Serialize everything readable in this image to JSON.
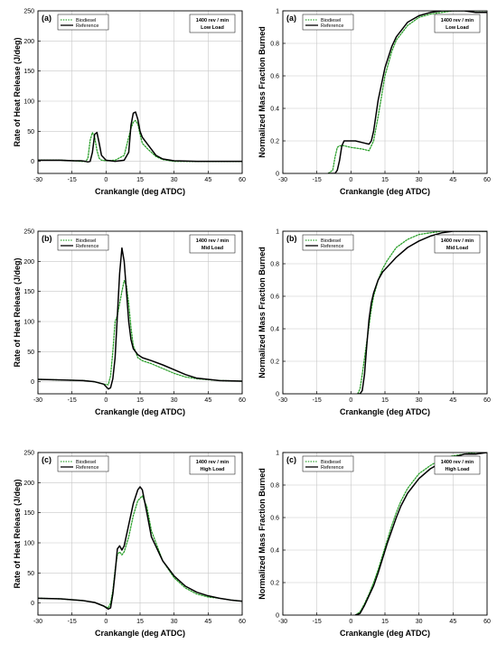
{
  "chart_data": [
    {
      "type": "line",
      "panel_tag": "(a)",
      "ylabel": "Rate of Heat Release (J/deg)",
      "xlabel": "Crankangle (deg ATDC)",
      "xlim": [
        -30,
        60
      ],
      "ylim": [
        -20,
        250
      ],
      "xticks": [
        "-30",
        "-15",
        "0",
        "15",
        "30",
        "45",
        "60"
      ],
      "yticks": [
        "0",
        "50",
        "100",
        "150",
        "200",
        "250"
      ],
      "grid": true,
      "legend_position": "top-left",
      "info_lines": [
        "1400 rev / min",
        "Low Load"
      ],
      "series": [
        {
          "name": "Biodiesel",
          "style": "dotted",
          "color": "#2ca02c",
          "x": [
            -30,
            -20,
            -14,
            -11,
            -9,
            -8,
            -7,
            -6,
            -5,
            -4,
            -3,
            -2,
            0,
            4,
            8,
            10,
            11,
            12,
            13,
            14,
            15,
            16,
            18,
            20,
            22,
            25,
            30,
            40,
            50,
            60
          ],
          "y": [
            2,
            2,
            1,
            0,
            0,
            5,
            35,
            48,
            40,
            18,
            5,
            2,
            1,
            2,
            10,
            40,
            55,
            65,
            68,
            62,
            45,
            30,
            22,
            15,
            8,
            3,
            0,
            0,
            0,
            0
          ]
        },
        {
          "name": "Reference",
          "style": "solid",
          "color": "#000000",
          "x": [
            -30,
            -20,
            -14,
            -11,
            -9,
            -8,
            -7,
            -6,
            -5,
            -4,
            -3,
            -2,
            0,
            4,
            8,
            10,
            11,
            12,
            13,
            14,
            15,
            16,
            18,
            20,
            22,
            25,
            30,
            40,
            50,
            60
          ],
          "y": [
            2,
            2,
            1,
            1,
            0,
            -1,
            0,
            15,
            45,
            48,
            30,
            10,
            2,
            0,
            2,
            15,
            60,
            80,
            82,
            70,
            50,
            40,
            30,
            20,
            10,
            4,
            1,
            0,
            0,
            0
          ]
        }
      ]
    },
    {
      "type": "line",
      "panel_tag": "(a)",
      "ylabel": "Normalized Mass Fraction Burned",
      "xlabel": "Crankangle (deg ATDC)",
      "xlim": [
        -30,
        60
      ],
      "ylim": [
        0,
        1
      ],
      "xticks": [
        "-30",
        "-15",
        "0",
        "15",
        "30",
        "45",
        "60"
      ],
      "yticks": [
        "0",
        "0.2",
        "0.4",
        "0.6",
        "0.8",
        "1"
      ],
      "grid": true,
      "legend_position": "top-left",
      "info_lines": [
        "1400 rev / min",
        "Low Load"
      ],
      "series": [
        {
          "name": "Biodiesel",
          "style": "dotted",
          "color": "#2ca02c",
          "x": [
            -10,
            -8,
            -7,
            -6,
            -5,
            -3,
            0,
            5,
            8,
            10,
            12,
            15,
            18,
            20,
            25,
            30,
            35,
            40,
            45,
            50,
            55,
            60
          ],
          "y": [
            0,
            0.02,
            0.1,
            0.16,
            0.17,
            0.17,
            0.16,
            0.15,
            0.14,
            0.2,
            0.35,
            0.6,
            0.75,
            0.82,
            0.91,
            0.96,
            0.98,
            0.99,
            1,
            1,
            1,
            1
          ]
        },
        {
          "name": "Reference",
          "style": "solid",
          "color": "#000000",
          "x": [
            -10,
            -7,
            -6,
            -5,
            -4,
            -3,
            -1,
            2,
            5,
            8,
            9,
            10,
            12,
            15,
            18,
            20,
            25,
            30,
            35,
            40,
            45,
            50,
            55,
            60
          ],
          "y": [
            0,
            0,
            0.02,
            0.08,
            0.17,
            0.2,
            0.2,
            0.2,
            0.19,
            0.18,
            0.2,
            0.26,
            0.45,
            0.65,
            0.78,
            0.84,
            0.93,
            0.97,
            0.99,
            1,
            1,
            1,
            0.99,
            0.99
          ]
        }
      ]
    },
    {
      "type": "line",
      "panel_tag": "(b)",
      "ylabel": "Rate of Heat Release (J/deg)",
      "xlabel": "Crankangle (deg ATDC)",
      "xlim": [
        -30,
        60
      ],
      "ylim": [
        -20,
        250
      ],
      "xticks": [
        "-30",
        "-15",
        "0",
        "15",
        "30",
        "45",
        "60"
      ],
      "yticks": [
        "0",
        "50",
        "100",
        "150",
        "200",
        "250"
      ],
      "grid": true,
      "legend_position": "top-left",
      "info_lines": [
        "1400 rev / min",
        "Mid Load"
      ],
      "series": [
        {
          "name": "Biodiesel",
          "style": "dotted",
          "color": "#2ca02c",
          "x": [
            -30,
            -20,
            -10,
            -5,
            -1,
            1,
            2,
            3,
            4,
            5,
            6,
            7,
            8,
            9,
            10,
            11,
            12,
            14,
            16,
            20,
            25,
            30,
            35,
            40,
            50,
            60
          ],
          "y": [
            4,
            3,
            2,
            0,
            -4,
            -5,
            10,
            50,
            100,
            110,
            130,
            150,
            168,
            160,
            130,
            90,
            60,
            40,
            35,
            30,
            22,
            14,
            8,
            5,
            2,
            1
          ]
        },
        {
          "name": "Reference",
          "style": "solid",
          "color": "#000000",
          "x": [
            -30,
            -20,
            -10,
            -5,
            -1,
            1,
            2,
            3,
            4,
            5,
            6,
            7,
            8,
            9,
            10,
            11,
            12,
            14,
            16,
            20,
            25,
            30,
            35,
            40,
            50,
            60
          ],
          "y": [
            4,
            3,
            2,
            0,
            -4,
            -12,
            -10,
            5,
            40,
            110,
            180,
            222,
            200,
            150,
            100,
            70,
            55,
            45,
            40,
            35,
            28,
            20,
            12,
            6,
            2,
            1
          ]
        }
      ]
    },
    {
      "type": "line",
      "panel_tag": "(b)",
      "ylabel": "Normalized Mass Fraction Burned",
      "xlabel": "Crankangle (deg ATDC)",
      "xlim": [
        -30,
        60
      ],
      "ylim": [
        0,
        1
      ],
      "xticks": [
        "-30",
        "-15",
        "0",
        "15",
        "30",
        "45",
        "60"
      ],
      "yticks": [
        "0",
        "0.2",
        "0.4",
        "0.6",
        "0.8",
        "1"
      ],
      "grid": true,
      "legend_position": "top-left",
      "info_lines": [
        "1400 rev / min",
        "Mid Load"
      ],
      "series": [
        {
          "name": "Biodiesel",
          "style": "dotted",
          "color": "#2ca02c",
          "x": [
            3,
            4,
            5,
            6,
            7,
            8,
            9,
            10,
            12,
            14,
            16,
            18,
            20,
            25,
            30,
            35,
            40,
            45,
            50,
            55,
            60
          ],
          "y": [
            0,
            0.03,
            0.12,
            0.22,
            0.32,
            0.42,
            0.52,
            0.6,
            0.7,
            0.77,
            0.82,
            0.86,
            0.9,
            0.95,
            0.98,
            0.99,
            1,
            1,
            1,
            1,
            1
          ]
        },
        {
          "name": "Reference",
          "style": "solid",
          "color": "#000000",
          "x": [
            3,
            4,
            5,
            6,
            7,
            8,
            9,
            10,
            12,
            14,
            16,
            18,
            20,
            25,
            30,
            35,
            40,
            45,
            50,
            55,
            60
          ],
          "y": [
            0,
            0,
            0.02,
            0.12,
            0.3,
            0.46,
            0.56,
            0.62,
            0.7,
            0.75,
            0.78,
            0.81,
            0.84,
            0.9,
            0.94,
            0.97,
            0.99,
            1,
            1,
            1,
            1
          ]
        }
      ]
    },
    {
      "type": "line",
      "panel_tag": "(c)",
      "ylabel": "Rate of Heat Release (J/deg)",
      "xlabel": "Crankangle (deg ATDC)",
      "xlim": [
        -30,
        60
      ],
      "ylim": [
        -20,
        250
      ],
      "xticks": [
        "-30",
        "-15",
        "0",
        "15",
        "30",
        "45",
        "60"
      ],
      "yticks": [
        "0",
        "50",
        "100",
        "150",
        "200",
        "250"
      ],
      "grid": true,
      "legend_position": "top-left",
      "info_lines": [
        "1400 rev / min",
        "High Load"
      ],
      "series": [
        {
          "name": "Biodiesel",
          "style": "dotted",
          "color": "#2ca02c",
          "x": [
            -30,
            -20,
            -10,
            -5,
            -1,
            1,
            2,
            3,
            4,
            5,
            6,
            7,
            8,
            10,
            12,
            14,
            16,
            18,
            20,
            25,
            30,
            35,
            40,
            45,
            50,
            55,
            60
          ],
          "y": [
            8,
            7,
            4,
            1,
            -5,
            -8,
            0,
            20,
            55,
            80,
            85,
            80,
            85,
            110,
            145,
            170,
            178,
            160,
            120,
            70,
            42,
            25,
            15,
            10,
            8,
            5,
            3
          ]
        },
        {
          "name": "Reference",
          "style": "solid",
          "color": "#000000",
          "x": [
            -30,
            -20,
            -10,
            -5,
            -1,
            1,
            2,
            3,
            4,
            5,
            6,
            7,
            8,
            10,
            12,
            14,
            15,
            16,
            18,
            20,
            25,
            30,
            35,
            40,
            45,
            50,
            55,
            60
          ],
          "y": [
            8,
            7,
            4,
            1,
            -5,
            -10,
            -8,
            15,
            50,
            90,
            95,
            88,
            95,
            130,
            165,
            188,
            193,
            188,
            150,
            110,
            70,
            45,
            28,
            18,
            12,
            8,
            5,
            3
          ]
        }
      ]
    },
    {
      "type": "line",
      "panel_tag": "(c)",
      "ylabel": "Normalized Mass Fraction Burned",
      "xlabel": "Crankangle (deg ATDC)",
      "xlim": [
        -30,
        60
      ],
      "ylim": [
        0,
        1
      ],
      "xticks": [
        "-30",
        "-15",
        "0",
        "15",
        "30",
        "45",
        "60"
      ],
      "yticks": [
        "0",
        "0.2",
        "0.4",
        "0.6",
        "0.8",
        "1"
      ],
      "grid": true,
      "legend_position": "top-left",
      "info_lines": [
        "1400 rev / min",
        "High Load"
      ],
      "series": [
        {
          "name": "Biodiesel",
          "style": "dotted",
          "color": "#2ca02c",
          "x": [
            2,
            4,
            6,
            8,
            10,
            12,
            14,
            16,
            18,
            20,
            22,
            25,
            30,
            35,
            40,
            45,
            50,
            55,
            60
          ],
          "y": [
            0,
            0.02,
            0.07,
            0.13,
            0.2,
            0.28,
            0.37,
            0.46,
            0.55,
            0.63,
            0.7,
            0.78,
            0.87,
            0.92,
            0.96,
            0.98,
            0.99,
            1,
            1
          ]
        },
        {
          "name": "Reference",
          "style": "solid",
          "color": "#000000",
          "x": [
            2,
            4,
            6,
            8,
            10,
            12,
            14,
            16,
            18,
            20,
            22,
            25,
            30,
            35,
            40,
            45,
            50,
            55,
            60
          ],
          "y": [
            0,
            0.01,
            0.06,
            0.12,
            0.18,
            0.26,
            0.35,
            0.44,
            0.52,
            0.6,
            0.67,
            0.75,
            0.84,
            0.9,
            0.94,
            0.97,
            0.99,
            0.99,
            1
          ]
        }
      ]
    }
  ]
}
